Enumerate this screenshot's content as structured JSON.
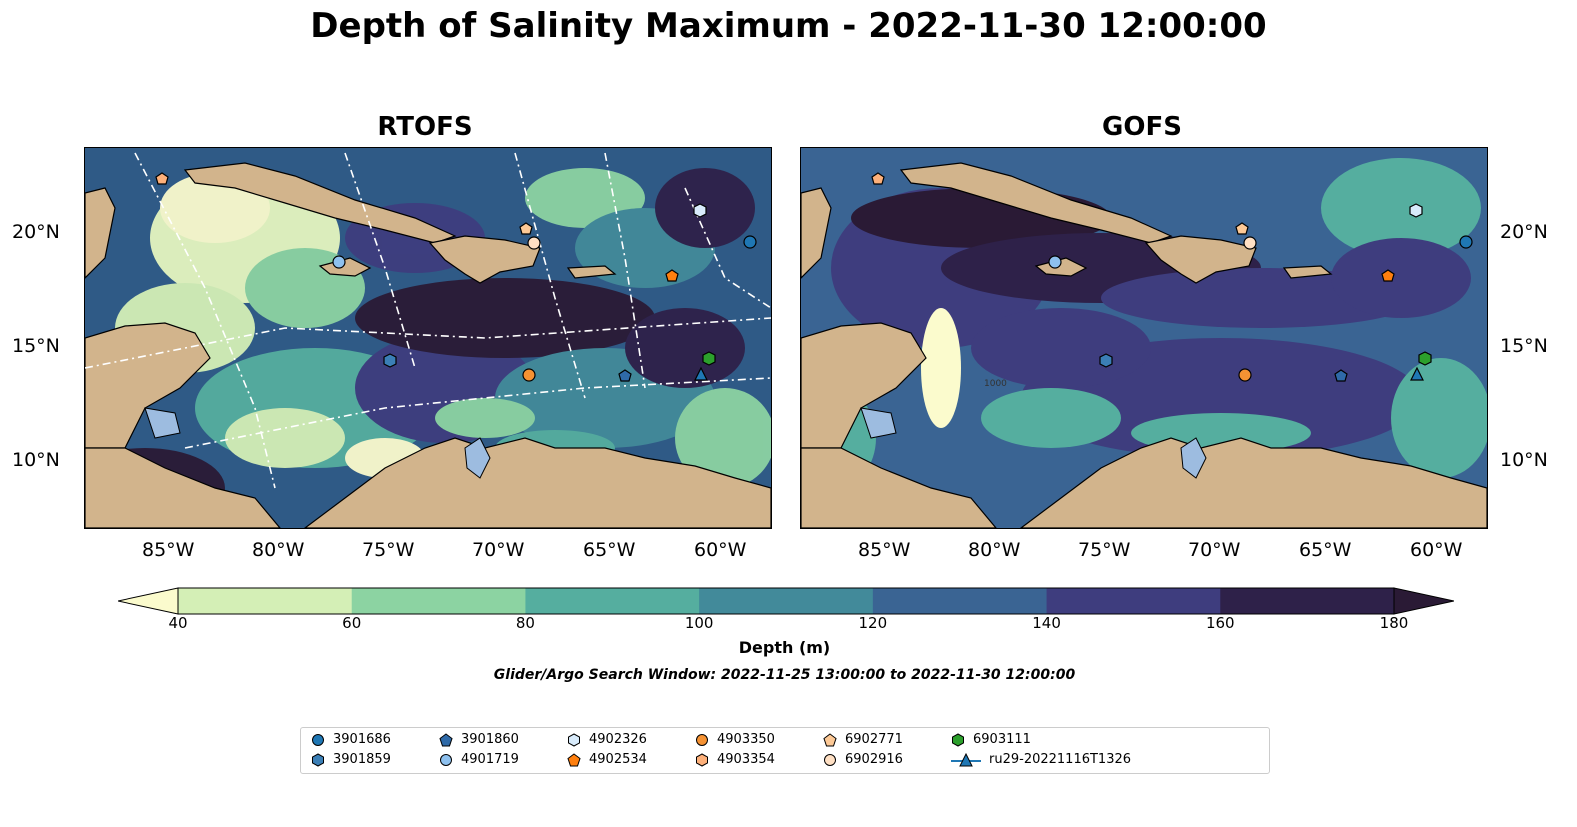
{
  "title": "Depth of Salinity Maximum - 2022-11-30 12:00:00",
  "panels": [
    {
      "title": "RTOFS"
    },
    {
      "title": "GOFS"
    }
  ],
  "axes": {
    "lon_ticks": [
      "85°W",
      "80°W",
      "75°W",
      "70°W",
      "65°W",
      "60°W"
    ],
    "lat_ticks": [
      "20°N",
      "15°N",
      "10°N"
    ],
    "lon_range": [
      -89,
      -58
    ],
    "lat_range": [
      7,
      24
    ]
  },
  "contour_label": "1000",
  "colorbar": {
    "label": "Depth (m)",
    "ticks": [
      "40",
      "60",
      "80",
      "100",
      "120",
      "140",
      "160",
      "180"
    ],
    "colors": [
      "#fbfbcd",
      "#d4efb6",
      "#8cd3a2",
      "#55ae9f",
      "#428a9a",
      "#3a6493",
      "#3e3d7e",
      "#2e2149",
      "#2a1a35"
    ],
    "extend": "both"
  },
  "search_window": "Glider/Argo Search Window: 2022-11-25 13:00:00 to 2022-11-30 12:00:00",
  "legend": [
    {
      "label": "3901686",
      "marker": "circle",
      "color": "#1f77b4"
    },
    {
      "label": "3901859",
      "marker": "hexagon",
      "color": "#3b7fb6"
    },
    {
      "label": "3901860",
      "marker": "pentagon",
      "color": "#2f6aa8"
    },
    {
      "label": "4901719",
      "marker": "circle",
      "color": "#8ec1ef"
    },
    {
      "label": "4902326",
      "marker": "hexagon",
      "color": "#d8ebfb"
    },
    {
      "label": "4902534",
      "marker": "pentagon",
      "color": "#ff7f0e"
    },
    {
      "label": "4903350",
      "marker": "circle",
      "color": "#f59233"
    },
    {
      "label": "4903354",
      "marker": "hexagon",
      "color": "#fdb07a"
    },
    {
      "label": "6902771",
      "marker": "pentagon",
      "color": "#fdc996"
    },
    {
      "label": "6902916",
      "marker": "circle",
      "color": "#ffe0c4"
    },
    {
      "label": "6903111",
      "marker": "hexagon",
      "color": "#2ca02c"
    },
    {
      "label": "ru29-20221116T1326",
      "marker": "triangle",
      "color": "#1f77b4"
    }
  ],
  "map_colors": {
    "land": "#d2b48c",
    "lakes": "#9dbce0",
    "gofs_base": "#3a6493",
    "rtofs_base": "#355e8a"
  }
}
